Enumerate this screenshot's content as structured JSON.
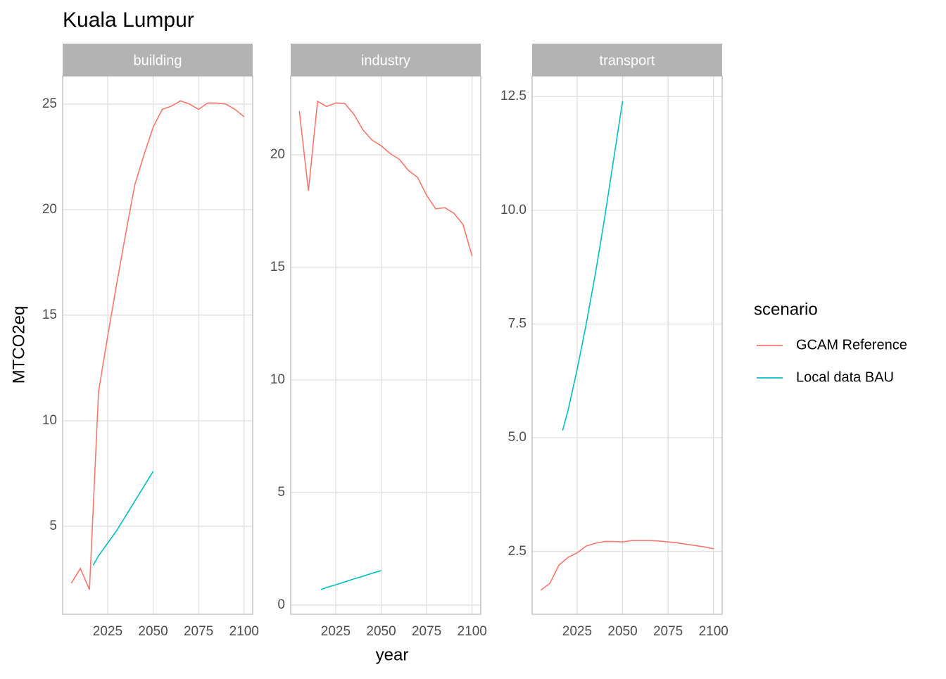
{
  "title": "Kuala Lumpur",
  "x_label": "year",
  "y_label": "MTCO2eq",
  "legend_title": "scenario",
  "chart_data": [
    {
      "type": "line",
      "title": "building",
      "xlim": [
        2000.25,
        2104.75
      ],
      "xticks": [
        2025,
        2050,
        2075,
        2100
      ],
      "ylim": [
        0.83,
        26.33
      ],
      "yticks": [
        5,
        10,
        15,
        20,
        25
      ],
      "grid": true,
      "series": [
        {
          "name": "GCAM Reference",
          "color": "#F8766D",
          "x": [
            2005,
            2010,
            2015,
            2020,
            2025,
            2030,
            2035,
            2040,
            2045,
            2050,
            2055,
            2060,
            2065,
            2070,
            2075,
            2080,
            2085,
            2090,
            2095,
            2100
          ],
          "values": [
            2.3,
            3.0,
            2.0,
            11.37,
            14.0,
            16.5,
            18.9,
            21.2,
            22.6,
            23.9,
            24.75,
            24.9,
            25.15,
            25.0,
            24.75,
            25.05,
            25.05,
            25.0,
            24.75,
            24.4
          ]
        },
        {
          "name": "Local data BAU",
          "color": "#00BFC4",
          "x": [
            2017,
            2020,
            2025,
            2030,
            2035,
            2040,
            2045,
            2050
          ],
          "values": [
            3.15,
            3.6,
            4.2,
            4.8,
            5.5,
            6.2,
            6.9,
            7.6
          ]
        }
      ]
    },
    {
      "type": "line",
      "title": "industry",
      "xlim": [
        2000.25,
        2104.75
      ],
      "xticks": [
        2025,
        2050,
        2075,
        2100
      ],
      "ylim": [
        -0.41,
        23.5
      ],
      "yticks": [
        0,
        5,
        10,
        15,
        20
      ],
      "grid": true,
      "series": [
        {
          "name": "GCAM Reference",
          "color": "#F8766D",
          "x": [
            2005,
            2010,
            2015,
            2020,
            2025,
            2030,
            2035,
            2040,
            2045,
            2050,
            2055,
            2060,
            2065,
            2070,
            2075,
            2080,
            2085,
            2090,
            2095,
            2100
          ],
          "values": [
            21.94,
            18.4,
            22.37,
            22.15,
            22.3,
            22.28,
            21.8,
            21.1,
            20.65,
            20.4,
            20.05,
            19.8,
            19.3,
            19.0,
            18.2,
            17.6,
            17.65,
            17.4,
            16.9,
            15.5
          ]
        },
        {
          "name": "Local data BAU",
          "color": "#00BFC4",
          "x": [
            2017,
            2020,
            2025,
            2030,
            2035,
            2040,
            2045,
            2050
          ],
          "values": [
            0.69,
            0.78,
            0.9,
            1.03,
            1.16,
            1.28,
            1.41,
            1.53
          ]
        }
      ]
    },
    {
      "type": "line",
      "title": "transport",
      "xlim": [
        2000.25,
        2104.75
      ],
      "xticks": [
        2025,
        2050,
        2075,
        2100
      ],
      "ylim": [
        1.12,
        12.95
      ],
      "yticks": [
        2.5,
        {
          "value": 5,
          "label": "5.0"
        },
        7.5,
        {
          "value": 10,
          "label": "10.0"
        },
        12.5
      ],
      "grid": true,
      "series": [
        {
          "name": "GCAM Reference",
          "color": "#F8766D",
          "x": [
            2005,
            2010,
            2015,
            2020,
            2025,
            2030,
            2035,
            2040,
            2045,
            2050,
            2055,
            2060,
            2065,
            2070,
            2075,
            2080,
            2085,
            2090,
            2095,
            2100
          ],
          "values": [
            1.65,
            1.8,
            2.2,
            2.37,
            2.47,
            2.62,
            2.68,
            2.72,
            2.72,
            2.71,
            2.74,
            2.74,
            2.74,
            2.73,
            2.71,
            2.69,
            2.66,
            2.63,
            2.6,
            2.56
          ]
        },
        {
          "name": "Local data BAU",
          "color": "#00BFC4",
          "x": [
            2017,
            2020,
            2025,
            2030,
            2035,
            2040,
            2045,
            2050
          ],
          "values": [
            5.16,
            5.6,
            6.5,
            7.5,
            8.6,
            9.8,
            11.1,
            12.4
          ]
        }
      ]
    }
  ]
}
